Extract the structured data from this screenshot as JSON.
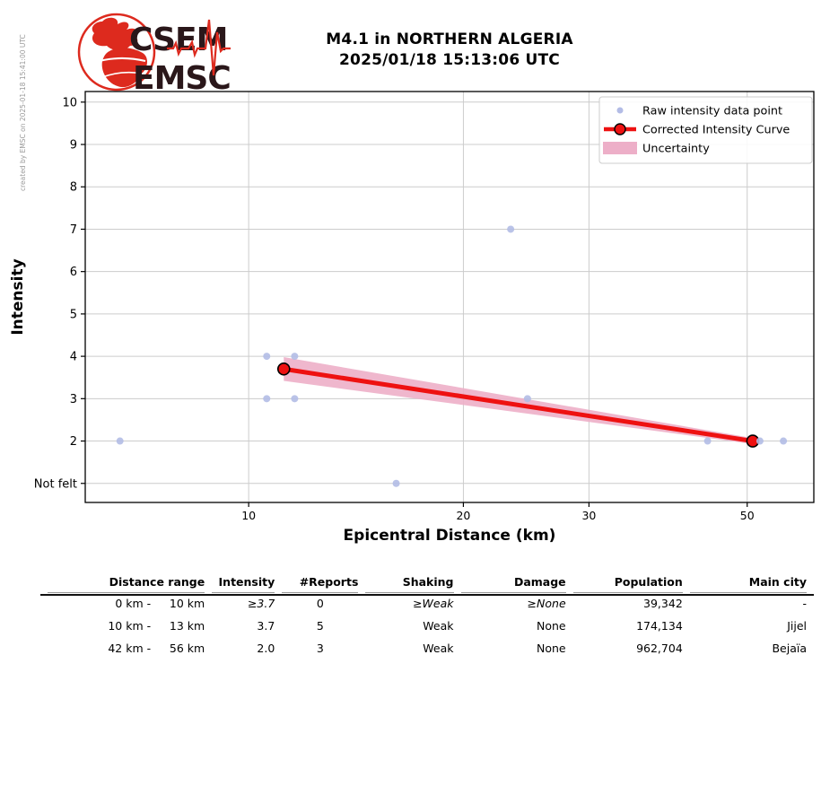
{
  "created_by": "created by EMSC on 2025-01-18 15:41:00 UTC",
  "logo": {
    "top_text": "CSEM",
    "bottom_text": "EMSC"
  },
  "header": {
    "title_line1": "M4.1 in NORTHERN ALGERIA",
    "title_line2": "2025/01/18 15:13:06 UTC"
  },
  "colors": {
    "raw_point": "#b3bce6",
    "curve_red": "#ee1111",
    "uncertainty_pink": "#edafc8",
    "grid": "#cccccc",
    "frame": "#000000",
    "logo_red": "#dd2a1e",
    "logo_dark": "#2a171a",
    "credit_gray": "#9a9a9a"
  },
  "chart_data": {
    "type": "scatter",
    "title": "M4.1 in NORTHERN ALGERIA 2025/01/18 15:13:06 UTC",
    "xlabel": "Epicentral Distance (km)",
    "ylabel": "Intensity",
    "x_scale": "log",
    "x_range": [
      5.9,
      62
    ],
    "y_range": [
      0.55,
      10.25
    ],
    "x_ticks": [
      10,
      20,
      30,
      50
    ],
    "y_ticks": [
      {
        "label": "10",
        "value": 10
      },
      {
        "label": "9",
        "value": 9
      },
      {
        "label": "8",
        "value": 8
      },
      {
        "label": "7",
        "value": 7
      },
      {
        "label": "6",
        "value": 6
      },
      {
        "label": "5",
        "value": 5
      },
      {
        "label": "4",
        "value": 4
      },
      {
        "label": "3",
        "value": 3
      },
      {
        "label": "2",
        "value": 2
      },
      {
        "label": "Not felt",
        "value": 1
      }
    ],
    "grid": true,
    "legend_position": "upper right",
    "series": [
      {
        "name": "Raw intensity data point",
        "type": "scatter",
        "color": "#b3bce6",
        "points": [
          [
            6.6,
            2
          ],
          [
            10.6,
            4
          ],
          [
            11.6,
            4
          ],
          [
            10.6,
            3
          ],
          [
            11.6,
            3
          ],
          [
            16.1,
            1
          ],
          [
            23.3,
            7
          ],
          [
            24.6,
            3
          ],
          [
            44.0,
            2
          ],
          [
            52.1,
            2
          ],
          [
            56.2,
            2
          ]
        ]
      },
      {
        "name": "Corrected Intensity Curve",
        "type": "line",
        "color": "#ee1111",
        "points": [
          [
            11.2,
            3.7
          ],
          [
            50.9,
            2.0
          ]
        ]
      },
      {
        "name": "Uncertainty",
        "type": "band",
        "color": "#edafc8",
        "points": [
          [
            11.2,
            3.42,
            3.98
          ],
          [
            50.9,
            1.93,
            2.07
          ]
        ]
      }
    ]
  },
  "table": {
    "headers": [
      "Distance range",
      "Intensity",
      "#Reports",
      "Shaking",
      "Damage",
      "Population",
      "Main city"
    ],
    "rows": [
      [
        "0 km -",
        "10 km",
        "≥3.7",
        "0",
        "≥Weak",
        "≥None",
        "39,342",
        "-"
      ],
      [
        "10 km -",
        "13 km",
        "3.7",
        "5",
        "Weak",
        "None",
        "174,134",
        "Jijel"
      ],
      [
        "42 km -",
        "56 km",
        "2.0",
        "3",
        "Weak",
        "None",
        "962,704",
        "Bejaïa"
      ]
    ]
  }
}
